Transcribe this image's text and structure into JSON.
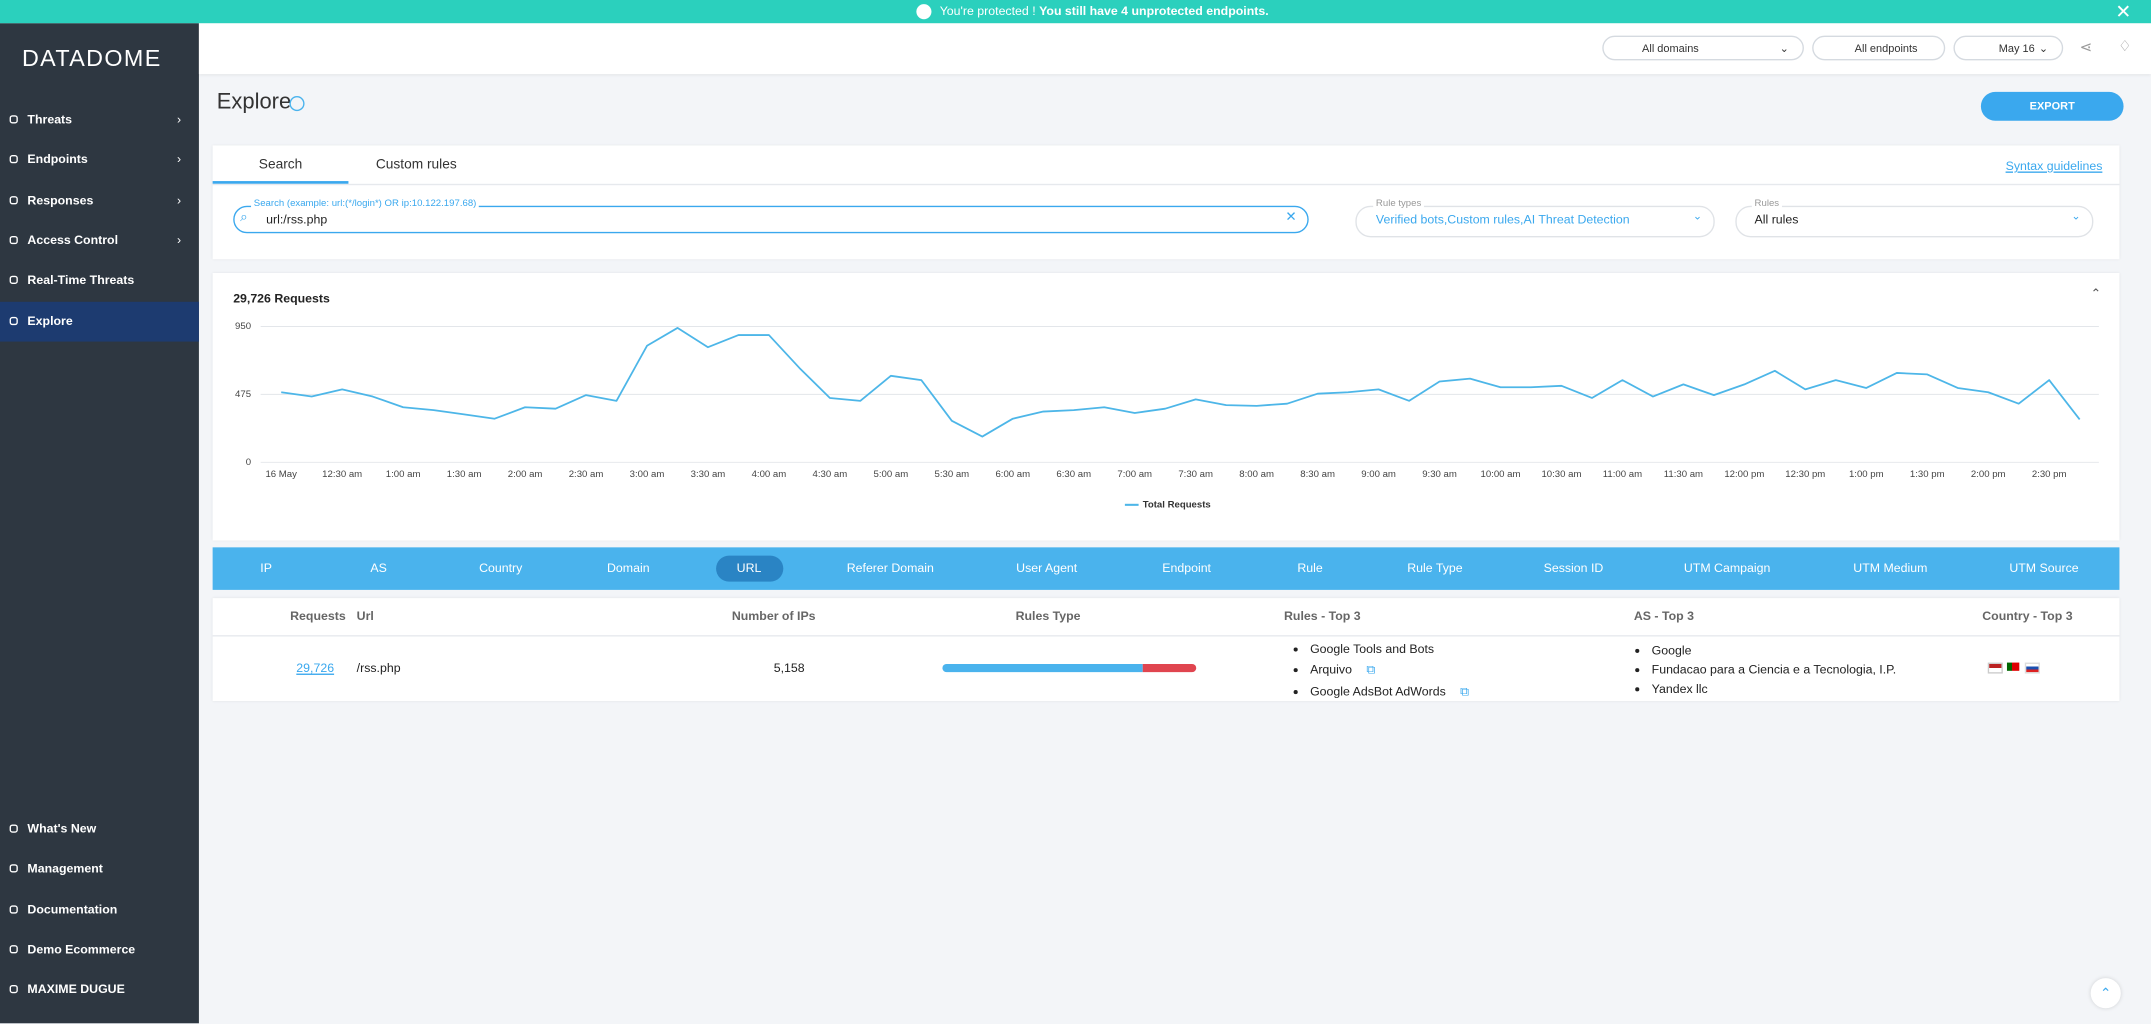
{
  "banner": {
    "message": "You're protected !",
    "message_bold": "You still have 4 unprotected endpoints."
  },
  "sidebar": {
    "logo": "DATADOME",
    "nav": [
      "Threats",
      "Endpoints",
      "Responses",
      "Access Control",
      "Real-Time Threats",
      "Explore"
    ],
    "bottom": [
      "What's New",
      "Management",
      "Documentation",
      "Demo Ecommerce",
      "MAXIME DUGUE"
    ]
  },
  "header": {
    "domains": "All domains",
    "endpoints": "All endpoints",
    "date": "May 16"
  },
  "page": {
    "title": "Explore",
    "export": "EXPORT"
  },
  "search": {
    "tabs": [
      "Search",
      "Custom rules"
    ],
    "syntax_link": "Syntax guidelines",
    "field_label": "Search (example: url:(*/login*) OR ip:10.122.197.68)",
    "field_value": "url:/rss.php",
    "rule_types_label": "Rule types",
    "rule_types_value": "Verified bots,Custom rules,AI Threat Detection",
    "rules_label": "Rules",
    "rules_value": "All rules"
  },
  "chart_data": {
    "type": "line",
    "title": "29,726 Requests",
    "categories": [
      "16 May",
      null,
      "12:30 am",
      null,
      "1:00 am",
      null,
      "1:30 am",
      null,
      "2:00 am",
      null,
      "2:30 am",
      null,
      "3:00 am",
      null,
      "3:30 am",
      null,
      "4:00 am",
      null,
      "4:30 am",
      null,
      "5:00 am",
      null,
      "5:30 am",
      null,
      "6:00 am",
      null,
      "6:30 am",
      null,
      "7:00 am",
      null,
      "7:30 am",
      null,
      "8:00 am",
      null,
      "8:30 am",
      null,
      "9:00 am",
      null,
      "9:30 am",
      null,
      "10:00 am",
      null,
      "10:30 am",
      null,
      "11:00 am",
      null,
      "11:30 am",
      null,
      "12:00 pm",
      null,
      "12:30 pm",
      null,
      "1:00 pm",
      null,
      "1:30 pm",
      null,
      "2:00 pm",
      null,
      "2:30 pm",
      null
    ],
    "series": [
      {
        "name": "Total Requests",
        "color": "#4db6e8",
        "values": [
          490,
          460,
          510,
          460,
          385,
          365,
          335,
          305,
          385,
          375,
          470,
          430,
          815,
          940,
          805,
          890,
          890,
          660,
          450,
          430,
          605,
          575,
          290,
          180,
          305,
          355,
          365,
          385,
          345,
          375,
          440,
          400,
          395,
          410,
          480,
          490,
          510,
          430,
          565,
          585,
          525,
          525,
          535,
          450,
          575,
          460,
          545,
          470,
          545,
          640,
          510,
          575,
          520,
          625,
          615,
          520,
          490,
          410,
          575,
          300
        ]
      }
    ],
    "ylim": [
      0,
      950
    ],
    "yticks": [
      0,
      475,
      950
    ],
    "grid": true,
    "legend": "bottom"
  },
  "dimension_tabs": [
    "IP",
    "AS",
    "Country",
    "Domain",
    "URL",
    "Referer Domain",
    "User Agent",
    "Endpoint",
    "Rule",
    "Rule Type",
    "Session ID",
    "UTM Campaign",
    "UTM Medium",
    "UTM Source"
  ],
  "table": {
    "headers": [
      "Requests",
      "Url",
      "Number of IPs",
      "Rules Type",
      "Rules - Top 3",
      "AS - Top 3",
      "Country - Top 3"
    ],
    "rows": [
      {
        "requests": "29,726",
        "url": "/rss.php",
        "ips": "5,158",
        "rules_top3": [
          "Google Tools and Bots",
          "Arquivo",
          "Google AdsBot AdWords"
        ],
        "as_top3": [
          "Google",
          "Fundacao para a Ciencia e a Tecnologia, I.P.",
          "Yandex llc"
        ]
      }
    ]
  }
}
